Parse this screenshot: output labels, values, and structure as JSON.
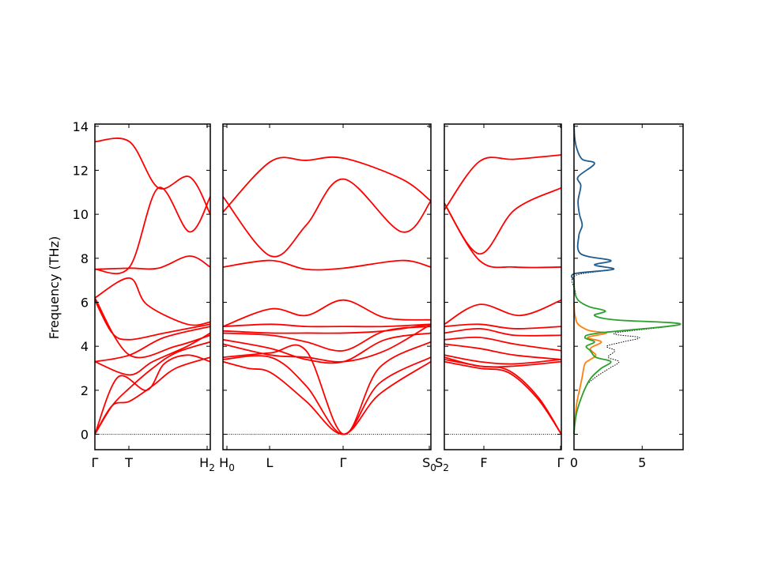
{
  "chart_data": [
    {
      "type": "line",
      "title": "",
      "ylabel": "Frequency (THz)",
      "ylim": [
        -0.7,
        14.1
      ],
      "yticks": [
        0,
        2,
        4,
        6,
        8,
        10,
        12,
        14
      ],
      "zero_line_color": "#0000ff",
      "band_color": "#ff0000",
      "xlabels": [
        {
          "main": "Γ",
          "sub": ""
        },
        {
          "main": "T",
          "sub": ""
        },
        {
          "main": "H",
          "sub": "2"
        },
        {
          "main": "H",
          "sub": "0"
        },
        {
          "main": "L",
          "sub": ""
        },
        {
          "main": "Γ",
          "sub": ""
        },
        {
          "main": "S",
          "sub": "0"
        },
        {
          "main": "S",
          "sub": "2"
        },
        {
          "main": "F",
          "sub": ""
        },
        {
          "main": "Γ",
          "sub": ""
        }
      ],
      "segments": [
        {
          "path": [
            "Γ",
            "T",
            "H2"
          ],
          "bands": [
            {
              "x": [
                0,
                0.15,
                0.3,
                0.5,
                0.7,
                1.0
              ],
              "y": [
                0,
                1.3,
                1.5,
                2.2,
                3.0,
                3.5
              ]
            },
            {
              "x": [
                0,
                0.15,
                0.3,
                0.5,
                0.7,
                1.0
              ],
              "y": [
                0,
                1.3,
                2.1,
                3.0,
                3.7,
                4.2
              ]
            },
            {
              "x": [
                0,
                0.2,
                0.45,
                0.6,
                0.8,
                1.0
              ],
              "y": [
                0,
                2.6,
                2.0,
                3.2,
                3.6,
                3.3
              ]
            },
            {
              "x": [
                0,
                0.3,
                0.5,
                0.8,
                1.0
              ],
              "y": [
                3.3,
                2.7,
                3.3,
                4.0,
                4.6
              ]
            },
            {
              "x": [
                0,
                0.3,
                0.6,
                1.0
              ],
              "y": [
                3.3,
                3.6,
                4.4,
                4.9
              ]
            },
            {
              "x": [
                0,
                0.3,
                0.7,
                1.0
              ],
              "y": [
                6.2,
                3.6,
                4.0,
                4.5
              ]
            },
            {
              "x": [
                0,
                0.15,
                0.3,
                0.6,
                1.0
              ],
              "y": [
                6.1,
                4.6,
                4.3,
                4.6,
                5.0
              ]
            },
            {
              "x": [
                0,
                0.3,
                0.45,
                0.8,
                1.0
              ],
              "y": [
                6.2,
                7.1,
                5.9,
                5.0,
                5.1
              ]
            },
            {
              "x": [
                0,
                0.3,
                0.55,
                0.82,
                1.0
              ],
              "y": [
                7.5,
                7.55,
                7.55,
                8.1,
                7.6
              ]
            },
            {
              "x": [
                0,
                0.3,
                0.55,
                0.82,
                1.0
              ],
              "y": [
                7.5,
                7.6,
                11.2,
                9.2,
                10.8
              ]
            },
            {
              "x": [
                0,
                0.3,
                0.55,
                0.82,
                1.0
              ],
              "y": [
                13.3,
                13.3,
                11.2,
                11.7,
                10.0
              ]
            }
          ]
        },
        {
          "path": [
            "H0",
            "L",
            "Γ",
            "S0"
          ],
          "bands": [
            {
              "x": [
                0,
                0.12,
                0.23,
                0.4,
                0.58,
                0.75,
                1.0
              ],
              "y": [
                3.3,
                3.0,
                2.8,
                1.5,
                0,
                1.8,
                3.3
              ]
            },
            {
              "x": [
                0,
                0.23,
                0.4,
                0.58,
                0.75,
                1.0
              ],
              "y": [
                3.4,
                3.5,
                2.2,
                0,
                2.3,
                3.5
              ]
            },
            {
              "x": [
                0,
                0.23,
                0.4,
                0.58,
                0.75,
                1.0
              ],
              "y": [
                3.5,
                3.7,
                3.8,
                0,
                3.0,
                4.2
              ]
            },
            {
              "x": [
                0,
                0.23,
                0.4,
                0.58,
                0.78,
                1.0
              ],
              "y": [
                4.1,
                3.6,
                3.5,
                3.3,
                3.8,
                5.0
              ]
            },
            {
              "x": [
                0,
                0.23,
                0.4,
                0.58,
                0.78,
                1.0
              ],
              "y": [
                4.3,
                3.9,
                3.4,
                3.3,
                4.3,
                4.6
              ]
            },
            {
              "x": [
                0,
                0.23,
                0.4,
                0.58,
                0.78,
                1.0
              ],
              "y": [
                4.6,
                4.5,
                4.2,
                3.8,
                4.7,
                4.9
              ]
            },
            {
              "x": [
                0,
                0.23,
                0.4,
                0.58,
                0.78,
                1.0
              ],
              "y": [
                4.7,
                4.6,
                4.6,
                4.6,
                4.7,
                5.0
              ]
            },
            {
              "x": [
                0,
                0.23,
                0.4,
                0.58,
                0.78,
                1.0
              ],
              "y": [
                4.9,
                5.0,
                4.9,
                4.9,
                4.9,
                5.0
              ]
            },
            {
              "x": [
                0,
                0.23,
                0.4,
                0.58,
                0.78,
                1.0
              ],
              "y": [
                4.9,
                5.7,
                5.4,
                6.1,
                5.3,
                5.2
              ]
            },
            {
              "x": [
                0,
                0.23,
                0.4,
                0.58,
                0.86,
                1.0
              ],
              "y": [
                7.6,
                7.9,
                7.5,
                7.55,
                7.9,
                7.6
              ]
            },
            {
              "x": [
                0,
                0.23,
                0.4,
                0.58,
                0.86,
                1.0
              ],
              "y": [
                10.8,
                8.1,
                9.5,
                11.6,
                9.2,
                10.6
              ]
            },
            {
              "x": [
                0,
                0.23,
                0.4,
                0.58,
                0.86,
                1.0
              ],
              "y": [
                10.1,
                12.4,
                12.45,
                12.55,
                11.6,
                10.6
              ]
            }
          ]
        },
        {
          "path": [
            "S2",
            "F",
            "Γ"
          ],
          "bands": [
            {
              "x": [
                0,
                0.3,
                0.55,
                0.8,
                1.0
              ],
              "y": [
                3.3,
                3.0,
                2.8,
                1.6,
                0
              ]
            },
            {
              "x": [
                0,
                0.3,
                0.55,
                0.8,
                1.0
              ],
              "y": [
                3.4,
                3.1,
                2.9,
                1.7,
                0
              ]
            },
            {
              "x": [
                0,
                0.3,
                0.6,
                1.0
              ],
              "y": [
                3.5,
                3.1,
                3.1,
                3.3
              ]
            },
            {
              "x": [
                0,
                0.3,
                0.6,
                1.0
              ],
              "y": [
                3.6,
                3.3,
                3.2,
                3.4
              ]
            },
            {
              "x": [
                0,
                0.3,
                0.6,
                1.0
              ],
              "y": [
                4.1,
                3.9,
                3.6,
                3.4
              ]
            },
            {
              "x": [
                0,
                0.3,
                0.6,
                1.0
              ],
              "y": [
                4.3,
                4.4,
                4.1,
                3.8
              ]
            },
            {
              "x": [
                0,
                0.3,
                0.6,
                1.0
              ],
              "y": [
                4.6,
                4.8,
                4.5,
                4.5
              ]
            },
            {
              "x": [
                0,
                0.3,
                0.6,
                1.0
              ],
              "y": [
                4.9,
                5.0,
                4.8,
                4.9
              ]
            },
            {
              "x": [
                0,
                0.3,
                0.65,
                1.0
              ],
              "y": [
                5.0,
                5.9,
                5.4,
                6.1
              ]
            },
            {
              "x": [
                0,
                0.3,
                0.6,
                1.0
              ],
              "y": [
                10.5,
                7.9,
                7.6,
                7.6
              ]
            },
            {
              "x": [
                0,
                0.3,
                0.6,
                1.0
              ],
              "y": [
                10.5,
                8.2,
                10.2,
                11.2
              ]
            },
            {
              "x": [
                0,
                0.3,
                0.6,
                1.0
              ],
              "y": [
                10.2,
                12.4,
                12.5,
                12.7
              ]
            }
          ]
        }
      ]
    },
    {
      "type": "line",
      "title": "",
      "xlim": [
        0,
        8
      ],
      "xticks": [
        0,
        5
      ],
      "ylim": [
        -0.7,
        14.1
      ],
      "series": [
        {
          "color": "#000000",
          "dotted": true,
          "points": [
            [
              0,
              0
            ],
            [
              0.05,
              0.4
            ],
            [
              0.2,
              1.0
            ],
            [
              0.5,
              1.6
            ],
            [
              0.9,
              2.2
            ],
            [
              1.6,
              2.6
            ],
            [
              2.6,
              3.0
            ],
            [
              3.3,
              3.3
            ],
            [
              2.5,
              3.5
            ],
            [
              3.0,
              3.8
            ],
            [
              2.4,
              4.0
            ],
            [
              3.6,
              4.2
            ],
            [
              4.8,
              4.4
            ],
            [
              3.0,
              4.6
            ],
            [
              7.8,
              5.0
            ],
            [
              3.0,
              5.2
            ],
            [
              1.5,
              5.4
            ],
            [
              2.3,
              5.6
            ],
            [
              1.1,
              5.8
            ],
            [
              0.3,
              6.1
            ],
            [
              0.1,
              6.5
            ],
            [
              0.05,
              7.2
            ],
            [
              2.9,
              7.5
            ],
            [
              1.5,
              7.7
            ],
            [
              2.7,
              7.9
            ],
            [
              0.5,
              8.2
            ],
            [
              0.35,
              9.0
            ],
            [
              0.6,
              9.5
            ],
            [
              0.4,
              10.0
            ],
            [
              0.3,
              10.6
            ],
            [
              0.5,
              11.3
            ],
            [
              0.3,
              11.7
            ],
            [
              1.5,
              12.3
            ],
            [
              0.6,
              12.5
            ],
            [
              0.2,
              13.0
            ],
            [
              0.05,
              13.5
            ],
            [
              0,
              14.1
            ]
          ]
        },
        {
          "color": "#ff7f0e",
          "dotted": false,
          "points": [
            [
              0,
              0
            ],
            [
              0.05,
              0.5
            ],
            [
              0.2,
              1.4
            ],
            [
              0.4,
              2.0
            ],
            [
              0.6,
              2.6
            ],
            [
              0.8,
              3.2
            ],
            [
              1.2,
              3.4
            ],
            [
              1.6,
              3.6
            ],
            [
              1.2,
              3.9
            ],
            [
              2.0,
              4.2
            ],
            [
              1.0,
              4.4
            ],
            [
              2.4,
              4.6
            ],
            [
              1.2,
              4.7
            ],
            [
              0.5,
              4.9
            ],
            [
              0.2,
              5.1
            ],
            [
              0.05,
              5.5
            ],
            [
              0,
              6.0
            ]
          ]
        },
        {
          "color": "#2ca02c",
          "dotted": false,
          "points": [
            [
              0,
              0
            ],
            [
              0.05,
              0.4
            ],
            [
              0.2,
              1.0
            ],
            [
              0.5,
              1.6
            ],
            [
              0.9,
              2.2
            ],
            [
              1.3,
              2.6
            ],
            [
              2.0,
              3.0
            ],
            [
              2.7,
              3.3
            ],
            [
              1.6,
              3.5
            ],
            [
              1.2,
              3.8
            ],
            [
              0.9,
              4.0
            ],
            [
              1.5,
              4.2
            ],
            [
              0.8,
              4.4
            ],
            [
              1.8,
              4.6
            ],
            [
              7.8,
              5.0
            ],
            [
              3.0,
              5.2
            ],
            [
              1.5,
              5.4
            ],
            [
              2.3,
              5.6
            ],
            [
              1.1,
              5.8
            ],
            [
              0.3,
              6.1
            ],
            [
              0.05,
              6.5
            ],
            [
              0,
              7.0
            ]
          ]
        },
        {
          "color": "#1f5c8f",
          "dotted": false,
          "points": [
            [
              0,
              7.0
            ],
            [
              0.05,
              7.3
            ],
            [
              2.9,
              7.5
            ],
            [
              1.5,
              7.7
            ],
            [
              2.7,
              7.9
            ],
            [
              0.5,
              8.2
            ],
            [
              0.35,
              9.0
            ],
            [
              0.6,
              9.5
            ],
            [
              0.4,
              10.0
            ],
            [
              0.3,
              10.6
            ],
            [
              0.5,
              11.3
            ],
            [
              0.3,
              11.7
            ],
            [
              1.5,
              12.3
            ],
            [
              0.6,
              12.5
            ],
            [
              0.2,
              13.0
            ],
            [
              0.05,
              13.5
            ],
            [
              0,
              14.1
            ]
          ]
        }
      ]
    }
  ]
}
